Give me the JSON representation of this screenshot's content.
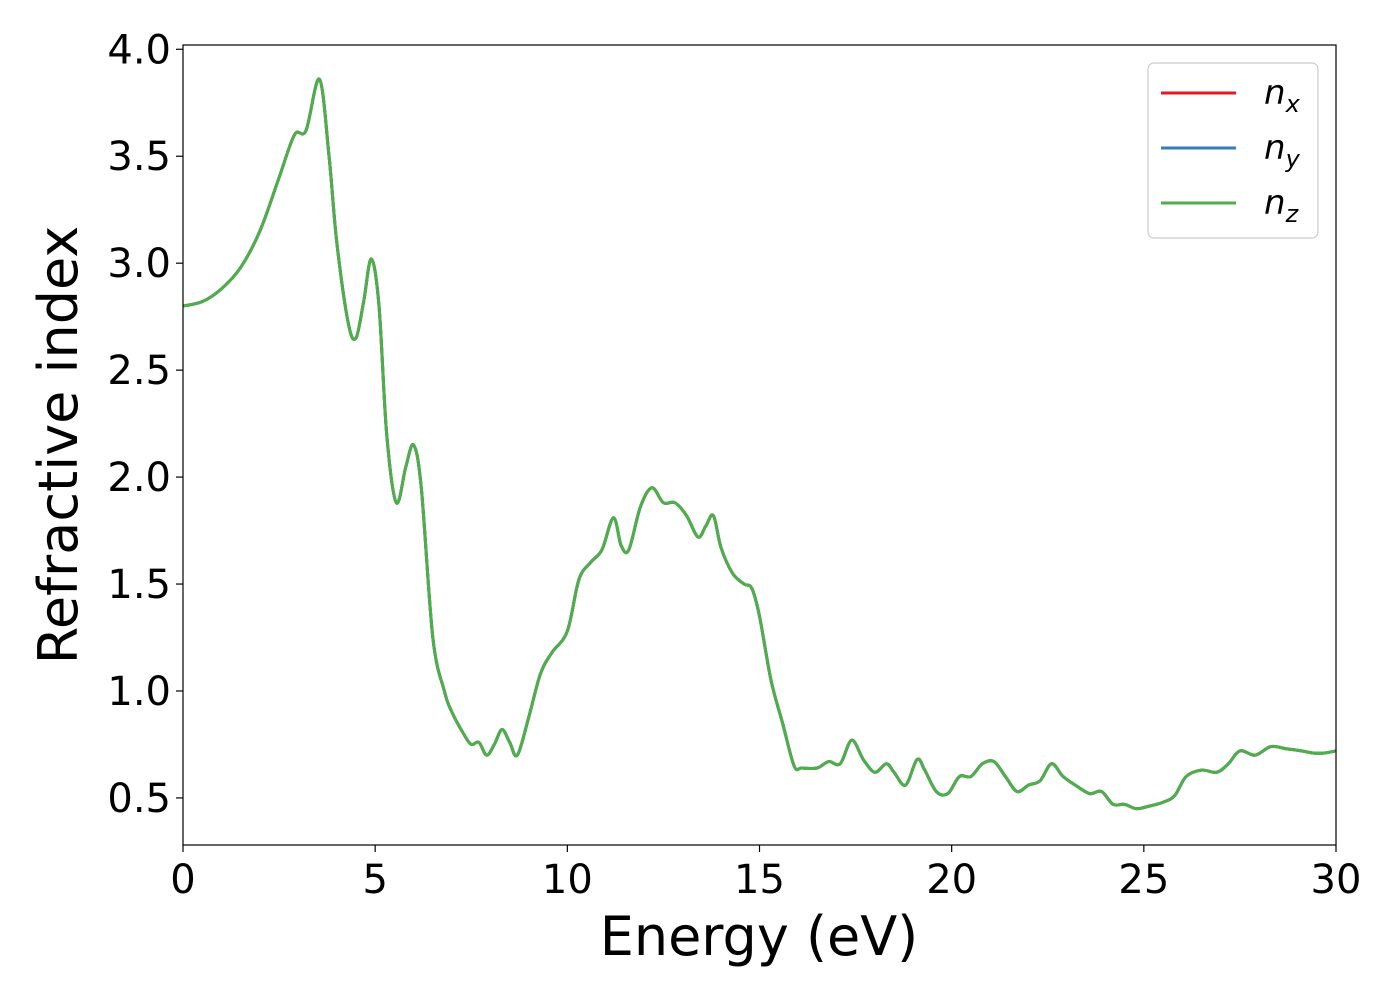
{
  "chart_data": {
    "type": "line",
    "title": "",
    "xlabel": "Energy (eV)",
    "ylabel": "Refractive index",
    "xlim": [
      0,
      30
    ],
    "ylim": [
      0.28,
      4.02
    ],
    "xticks": [
      0,
      5,
      10,
      15,
      20,
      25,
      30
    ],
    "xtick_labels": [
      "0",
      "5",
      "10",
      "15",
      "20",
      "25",
      "30"
    ],
    "yticks": [
      0.5,
      1.0,
      1.5,
      2.0,
      2.5,
      3.0,
      3.5,
      4.0
    ],
    "ytick_labels": [
      "0.5",
      "1.0",
      "1.5",
      "2.0",
      "2.5",
      "3.0",
      "3.5",
      "4.0"
    ],
    "grid": false,
    "legend_position": "top-right",
    "legend": [
      {
        "base": "n",
        "sub": "x",
        "color": "#e41a1c"
      },
      {
        "base": "n",
        "sub": "y",
        "color": "#377eb8"
      },
      {
        "base": "n",
        "sub": "z",
        "color": "#4daf4a"
      }
    ],
    "x": [
      0,
      0.5,
      1.0,
      1.5,
      2.0,
      2.5,
      2.9,
      3.2,
      3.55,
      3.8,
      4.0,
      4.3,
      4.5,
      4.7,
      4.9,
      5.1,
      5.3,
      5.55,
      5.8,
      6.0,
      6.2,
      6.5,
      6.8,
      7.0,
      7.3,
      7.5,
      7.7,
      7.9,
      8.1,
      8.3,
      8.5,
      8.7,
      9.0,
      9.3,
      9.6,
      10.0,
      10.3,
      10.6,
      10.9,
      11.2,
      11.4,
      11.6,
      11.9,
      12.2,
      12.5,
      12.8,
      13.1,
      13.4,
      13.6,
      13.8,
      14.0,
      14.3,
      14.6,
      14.8,
      15.0,
      15.3,
      15.6,
      15.9,
      16.1,
      16.5,
      16.8,
      17.1,
      17.4,
      17.7,
      18.0,
      18.3,
      18.5,
      18.8,
      19.1,
      19.3,
      19.6,
      19.9,
      20.2,
      20.5,
      20.8,
      21.1,
      21.4,
      21.7,
      22.0,
      22.3,
      22.6,
      22.9,
      23.3,
      23.6,
      23.9,
      24.2,
      24.5,
      24.8,
      25.1,
      25.5,
      25.8,
      26.1,
      26.5,
      26.9,
      27.2,
      27.5,
      27.9,
      28.3,
      28.7,
      29.1,
      29.4,
      29.7,
      30.0
    ],
    "series": [
      {
        "name": "n_x",
        "color": "#e41a1c",
        "values": [
          2.8,
          2.82,
          2.88,
          2.98,
          3.15,
          3.4,
          3.6,
          3.62,
          3.86,
          3.5,
          3.1,
          2.72,
          2.65,
          2.82,
          3.02,
          2.8,
          2.2,
          1.88,
          2.05,
          2.15,
          1.95,
          1.25,
          1.0,
          0.9,
          0.8,
          0.75,
          0.76,
          0.7,
          0.75,
          0.82,
          0.76,
          0.7,
          0.88,
          1.08,
          1.18,
          1.28,
          1.52,
          1.6,
          1.66,
          1.81,
          1.68,
          1.66,
          1.86,
          1.95,
          1.88,
          1.88,
          1.82,
          1.72,
          1.77,
          1.82,
          1.67,
          1.55,
          1.5,
          1.48,
          1.35,
          1.05,
          0.85,
          0.65,
          0.64,
          0.64,
          0.67,
          0.66,
          0.77,
          0.68,
          0.62,
          0.66,
          0.62,
          0.56,
          0.68,
          0.63,
          0.53,
          0.52,
          0.6,
          0.6,
          0.66,
          0.67,
          0.6,
          0.53,
          0.56,
          0.58,
          0.66,
          0.6,
          0.55,
          0.52,
          0.53,
          0.47,
          0.47,
          0.45,
          0.46,
          0.48,
          0.51,
          0.6,
          0.63,
          0.62,
          0.66,
          0.72,
          0.7,
          0.74,
          0.73,
          0.72,
          0.71,
          0.71,
          0.72
        ]
      },
      {
        "name": "n_y",
        "color": "#377eb8",
        "values": [
          2.8,
          2.82,
          2.88,
          2.98,
          3.15,
          3.4,
          3.6,
          3.62,
          3.86,
          3.5,
          3.1,
          2.72,
          2.65,
          2.82,
          3.02,
          2.8,
          2.2,
          1.88,
          2.05,
          2.15,
          1.95,
          1.25,
          1.0,
          0.9,
          0.8,
          0.75,
          0.76,
          0.7,
          0.75,
          0.82,
          0.76,
          0.7,
          0.88,
          1.08,
          1.18,
          1.28,
          1.52,
          1.6,
          1.66,
          1.81,
          1.68,
          1.66,
          1.86,
          1.95,
          1.88,
          1.88,
          1.82,
          1.72,
          1.77,
          1.82,
          1.67,
          1.55,
          1.5,
          1.48,
          1.35,
          1.05,
          0.85,
          0.65,
          0.64,
          0.64,
          0.67,
          0.66,
          0.77,
          0.68,
          0.62,
          0.66,
          0.62,
          0.56,
          0.68,
          0.63,
          0.53,
          0.52,
          0.6,
          0.6,
          0.66,
          0.67,
          0.6,
          0.53,
          0.56,
          0.58,
          0.66,
          0.6,
          0.55,
          0.52,
          0.53,
          0.47,
          0.47,
          0.45,
          0.46,
          0.48,
          0.51,
          0.6,
          0.63,
          0.62,
          0.66,
          0.72,
          0.7,
          0.74,
          0.73,
          0.72,
          0.71,
          0.71,
          0.72
        ]
      },
      {
        "name": "n_z",
        "color": "#4daf4a",
        "values": [
          2.8,
          2.82,
          2.88,
          2.98,
          3.15,
          3.4,
          3.6,
          3.62,
          3.86,
          3.5,
          3.1,
          2.72,
          2.65,
          2.82,
          3.02,
          2.8,
          2.2,
          1.88,
          2.05,
          2.15,
          1.95,
          1.25,
          1.0,
          0.9,
          0.8,
          0.75,
          0.76,
          0.7,
          0.75,
          0.82,
          0.76,
          0.7,
          0.88,
          1.08,
          1.18,
          1.28,
          1.52,
          1.6,
          1.66,
          1.81,
          1.68,
          1.66,
          1.86,
          1.95,
          1.88,
          1.88,
          1.82,
          1.72,
          1.77,
          1.82,
          1.67,
          1.55,
          1.5,
          1.48,
          1.35,
          1.05,
          0.85,
          0.65,
          0.64,
          0.64,
          0.67,
          0.66,
          0.77,
          0.68,
          0.62,
          0.66,
          0.62,
          0.56,
          0.68,
          0.63,
          0.53,
          0.52,
          0.6,
          0.6,
          0.66,
          0.67,
          0.6,
          0.53,
          0.56,
          0.58,
          0.66,
          0.6,
          0.55,
          0.52,
          0.53,
          0.47,
          0.47,
          0.45,
          0.46,
          0.48,
          0.51,
          0.6,
          0.63,
          0.62,
          0.66,
          0.72,
          0.7,
          0.74,
          0.73,
          0.72,
          0.71,
          0.71,
          0.72
        ]
      }
    ]
  }
}
